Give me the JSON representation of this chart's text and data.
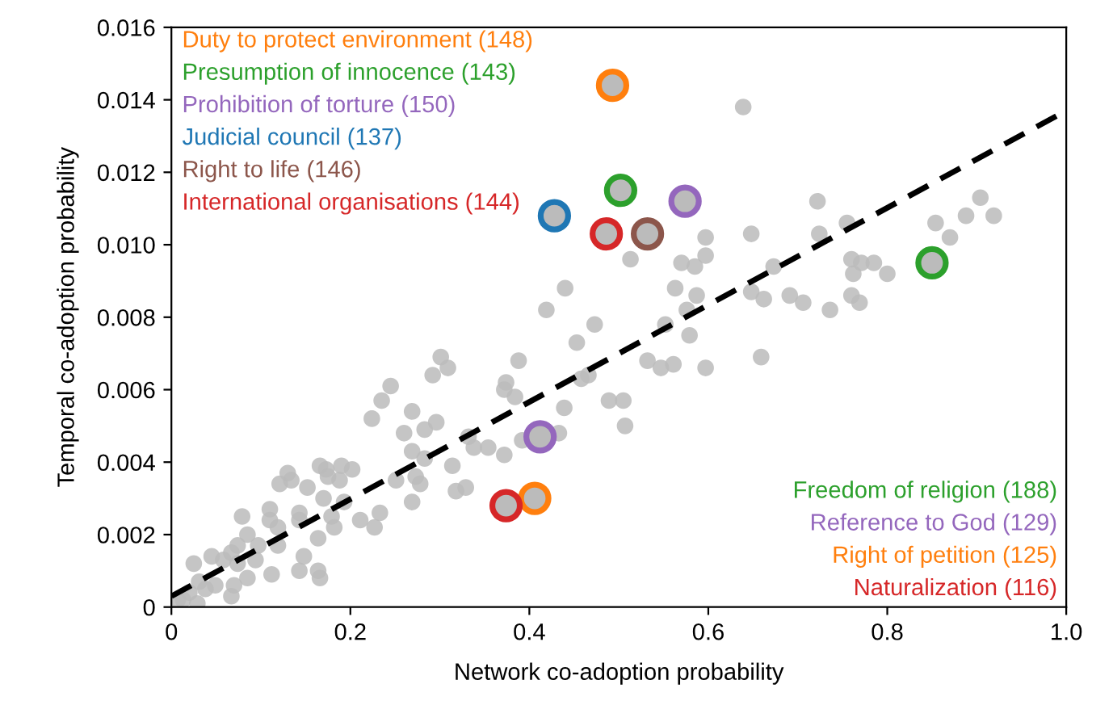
{
  "chart_data": {
    "type": "scatter",
    "xlabel": "Network co-adoption probability",
    "ylabel": "Temporal co-adoption probability",
    "xlim": [
      0,
      1.0
    ],
    "ylim": [
      0,
      0.016
    ],
    "xticks": [
      0,
      0.2,
      0.4,
      0.6,
      0.8,
      {
        "value": 1.0,
        "label": "1.0"
      }
    ],
    "yticks": [
      0,
      0.002,
      0.004,
      0.006,
      0.008,
      {
        "value": 0.01,
        "label": "0.010"
      },
      0.012,
      0.014,
      0.016
    ],
    "grid": false,
    "marker": "circle",
    "series": [
      {
        "color": "#bbbbbb",
        "x": [
          0.301,
          0.309,
          0.292,
          0.245,
          0.235,
          0.224,
          0.269,
          0.296,
          0.283,
          0.26,
          0.374,
          0.372,
          0.332,
          0.338,
          0.354,
          0.372,
          0.269,
          0.283,
          0.314,
          0.273,
          0.278,
          0.251,
          0.269,
          0.318,
          0.329,
          0.233,
          0.227,
          0.202,
          0.19,
          0.173,
          0.166,
          0.188,
          0.175,
          0.152,
          0.13,
          0.134,
          0.121,
          0.17,
          0.193,
          0.179,
          0.182,
          0.164,
          0.143,
          0.143,
          0.11,
          0.11,
          0.079,
          0.085,
          0.097,
          0.119,
          0.148,
          0.164,
          0.166,
          0.143,
          0.112,
          0.094,
          0.074,
          0.067,
          0.058,
          0.045,
          0.025,
          0.074,
          0.085,
          0.07,
          0.049,
          0.038,
          0.031,
          0.02,
          0.013,
          0.067,
          0.029,
          0.007,
          0.211,
          0.119,
          0.597,
          0.648,
          0.513,
          0.57,
          0.597,
          0.585,
          0.44,
          0.419,
          0.563,
          0.587,
          0.576,
          0.473,
          0.552,
          0.579,
          0.453,
          0.532,
          0.547,
          0.561,
          0.597,
          0.466,
          0.458,
          0.489,
          0.505,
          0.507,
          0.439,
          0.433,
          0.392,
          0.388,
          0.384,
          0.639,
          0.722,
          0.724,
          0.755,
          0.673,
          0.76,
          0.771,
          0.785,
          0.8,
          0.762,
          0.854,
          0.87,
          0.888,
          0.904,
          0.919,
          0.648,
          0.662,
          0.691,
          0.706,
          0.736,
          0.76,
          0.769,
          0.659
        ],
        "values": [
          0.0069,
          0.0066,
          0.0064,
          0.0061,
          0.0057,
          0.0052,
          0.0054,
          0.0051,
          0.0049,
          0.0048,
          0.0062,
          0.006,
          0.0047,
          0.0044,
          0.0044,
          0.0042,
          0.0043,
          0.0041,
          0.0039,
          0.0036,
          0.0034,
          0.0035,
          0.0029,
          0.0032,
          0.0033,
          0.0026,
          0.0022,
          0.0038,
          0.0039,
          0.0038,
          0.0039,
          0.0035,
          0.0036,
          0.0033,
          0.0037,
          0.0035,
          0.0034,
          0.003,
          0.0029,
          0.0025,
          0.0022,
          0.0019,
          0.0026,
          0.0024,
          0.0027,
          0.0024,
          0.0025,
          0.002,
          0.0017,
          0.0017,
          0.0014,
          0.001,
          0.0008,
          0.001,
          0.0009,
          0.0013,
          0.0017,
          0.0015,
          0.0013,
          0.0014,
          0.0012,
          0.0012,
          0.0008,
          0.0006,
          0.0006,
          0.0005,
          0.0007,
          0.0004,
          0.0002,
          0.0003,
          0.0001,
          0.0002,
          0.0024,
          0.0022,
          0.0102,
          0.0103,
          0.0096,
          0.0095,
          0.0097,
          0.0094,
          0.0088,
          0.0082,
          0.0088,
          0.0086,
          0.0082,
          0.0078,
          0.0078,
          0.0075,
          0.0073,
          0.0068,
          0.0066,
          0.0067,
          0.0066,
          0.0064,
          0.0063,
          0.0057,
          0.0057,
          0.005,
          0.0055,
          0.0048,
          0.0046,
          0.0068,
          0.0058,
          0.0138,
          0.0112,
          0.0103,
          0.0106,
          0.0094,
          0.0096,
          0.0095,
          0.0095,
          0.0092,
          0.0092,
          0.0106,
          0.0102,
          0.0108,
          0.0113,
          0.0108,
          0.0087,
          0.0085,
          0.0086,
          0.0084,
          0.0082,
          0.0086,
          0.0084,
          0.0069
        ]
      },
      {
        "type": "line",
        "color": "#000000",
        "line_style": "dashed",
        "marker": "none",
        "x": [
          0,
          1.0
        ],
        "values": [
          0.0003,
          0.0137
        ]
      },
      {
        "colors": [
          "#ff7f0e",
          "#2ca02c",
          "#9467bd",
          "#1f77b4",
          "#8c564b",
          "#d62728",
          "#2ca02c",
          "#9467bd",
          "#ff7f0e",
          "#d62728"
        ],
        "x": [
          0.493,
          0.502,
          0.574,
          0.428,
          0.532,
          0.486,
          0.85,
          0.412,
          0.406,
          0.374
        ],
        "values": [
          0.0144,
          0.0115,
          0.0112,
          0.0108,
          0.0103,
          0.0103,
          0.0095,
          0.0047,
          0.003,
          0.0028
        ]
      }
    ],
    "annotations": [
      "Duty to protect environment (148)",
      "Presumption of innocence (143)",
      "Prohibition of torture (150)",
      "Judicial council (137)",
      "Right to life (146)",
      "International organisations (144)",
      "Freedom of religion (188)",
      "Reference to God (129)",
      "Right of petition (125)",
      "Naturalization (116)"
    ]
  }
}
